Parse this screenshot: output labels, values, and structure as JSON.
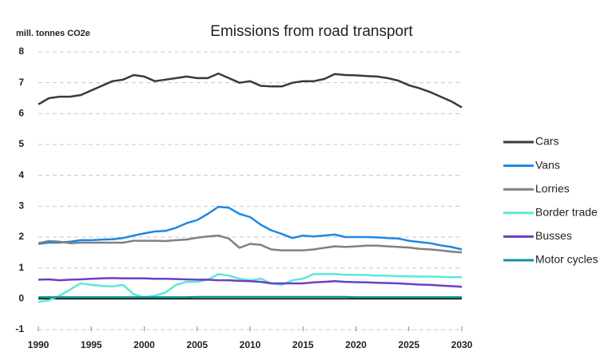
{
  "chart_data": {
    "type": "line",
    "title": "Emissions from road transport",
    "y_label": "mill. tonnes CO2e",
    "x": [
      1990,
      1991,
      1992,
      1993,
      1994,
      1995,
      1996,
      1997,
      1998,
      1999,
      2000,
      2001,
      2002,
      2003,
      2004,
      2005,
      2006,
      2007,
      2008,
      2009,
      2010,
      2011,
      2012,
      2013,
      2014,
      2015,
      2016,
      2017,
      2018,
      2019,
      2020,
      2021,
      2022,
      2023,
      2024,
      2025,
      2026,
      2027,
      2028,
      2029,
      2030
    ],
    "series": [
      {
        "name": "Cars",
        "color": "#3a3a3a",
        "values": [
          6.3,
          6.5,
          6.55,
          6.55,
          6.6,
          6.75,
          6.9,
          7.05,
          7.1,
          7.25,
          7.2,
          7.05,
          7.1,
          7.15,
          7.2,
          7.15,
          7.15,
          7.3,
          7.15,
          7.0,
          7.05,
          6.9,
          6.88,
          6.88,
          7.0,
          7.05,
          7.05,
          7.12,
          7.28,
          7.25,
          7.24,
          7.22,
          7.2,
          7.15,
          7.07,
          6.92,
          6.82,
          6.7,
          6.55,
          6.4,
          6.2
        ]
      },
      {
        "name": "Vans",
        "color": "#1e88e5",
        "values": [
          1.78,
          1.82,
          1.82,
          1.85,
          1.9,
          1.9,
          1.92,
          1.93,
          1.97,
          2.05,
          2.12,
          2.18,
          2.2,
          2.3,
          2.45,
          2.55,
          2.75,
          2.98,
          2.95,
          2.75,
          2.65,
          2.4,
          2.22,
          2.1,
          1.97,
          2.05,
          2.02,
          2.05,
          2.08,
          2.0,
          2.0,
          2.0,
          1.99,
          1.97,
          1.95,
          1.88,
          1.84,
          1.8,
          1.73,
          1.68,
          1.6
        ]
      },
      {
        "name": "Lorries",
        "color": "#808080",
        "values": [
          1.8,
          1.87,
          1.85,
          1.8,
          1.82,
          1.82,
          1.82,
          1.82,
          1.82,
          1.88,
          1.88,
          1.88,
          1.87,
          1.9,
          1.92,
          1.98,
          2.02,
          2.05,
          1.95,
          1.65,
          1.78,
          1.75,
          1.6,
          1.57,
          1.57,
          1.57,
          1.6,
          1.65,
          1.7,
          1.68,
          1.7,
          1.72,
          1.72,
          1.7,
          1.68,
          1.66,
          1.62,
          1.6,
          1.57,
          1.53,
          1.5
        ]
      },
      {
        "name": "Border trade",
        "color": "#5ce8d6",
        "values": [
          -0.1,
          -0.05,
          0.1,
          0.3,
          0.5,
          0.45,
          0.42,
          0.4,
          0.45,
          0.15,
          0.05,
          0.1,
          0.2,
          0.45,
          0.55,
          0.55,
          0.62,
          0.8,
          0.75,
          0.65,
          0.6,
          0.65,
          0.5,
          0.45,
          0.6,
          0.65,
          0.8,
          0.8,
          0.8,
          0.78,
          0.78,
          0.77,
          0.75,
          0.75,
          0.73,
          0.73,
          0.72,
          0.72,
          0.71,
          0.7,
          0.7
        ]
      },
      {
        "name": "Busses",
        "color": "#6a3fc8",
        "values": [
          0.62,
          0.63,
          0.6,
          0.62,
          0.63,
          0.65,
          0.66,
          0.67,
          0.66,
          0.66,
          0.66,
          0.65,
          0.65,
          0.64,
          0.63,
          0.62,
          0.62,
          0.6,
          0.6,
          0.58,
          0.57,
          0.55,
          0.5,
          0.5,
          0.5,
          0.5,
          0.53,
          0.55,
          0.57,
          0.55,
          0.54,
          0.53,
          0.52,
          0.51,
          0.5,
          0.48,
          0.46,
          0.45,
          0.43,
          0.41,
          0.39
        ]
      },
      {
        "name": "Motor cycles",
        "color": "#12939a",
        "values": [
          0.05,
          0.05,
          0.05,
          0.05,
          0.05,
          0.05,
          0.05,
          0.05,
          0.05,
          0.05,
          0.05,
          0.05,
          0.05,
          0.05,
          0.05,
          0.06,
          0.06,
          0.06,
          0.06,
          0.06,
          0.06,
          0.06,
          0.06,
          0.06,
          0.06,
          0.06,
          0.06,
          0.06,
          0.06,
          0.06,
          0.05,
          0.05,
          0.05,
          0.05,
          0.05,
          0.05,
          0.05,
          0.05,
          0.05,
          0.05,
          0.05
        ]
      }
    ],
    "xlim": [
      1990,
      2030
    ],
    "xticks": [
      1990,
      1995,
      2000,
      2005,
      2010,
      2015,
      2020,
      2025,
      2030
    ],
    "ylim": [
      -1,
      8
    ],
    "yticks": [
      -1,
      0,
      1,
      2,
      3,
      4,
      5,
      6,
      7,
      8
    ],
    "grid": true,
    "legend": "right"
  }
}
